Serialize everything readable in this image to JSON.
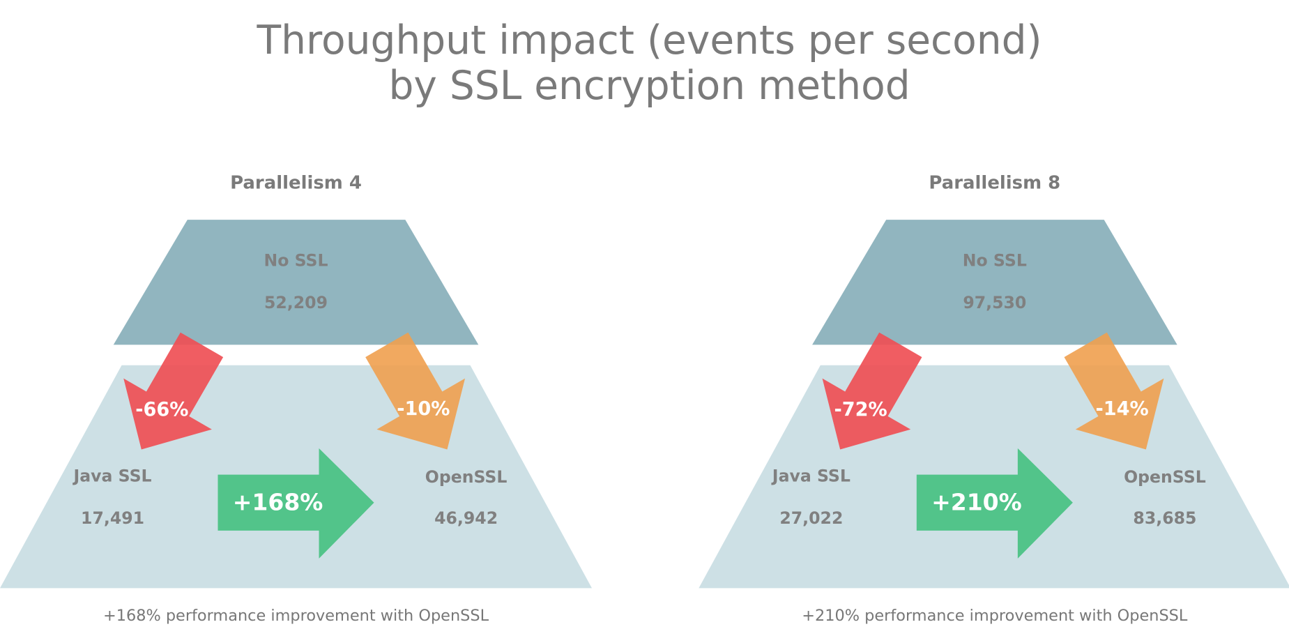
{
  "title": [
    "Throughput impact (events per second)",
    "by SSL encryption method"
  ],
  "panels": [
    {
      "heading": "Parallelism 4",
      "no_ssl": {
        "label": "No SSL",
        "value": "52,209"
      },
      "java_ssl": {
        "label": "Java SSL",
        "value": "17,491"
      },
      "openssl": {
        "label": "OpenSSL",
        "value": "46,942"
      },
      "java_change": "-66%",
      "openssl_change": "-10%",
      "improvement": "+168%",
      "caption": "+168% performance improvement with OpenSSL"
    },
    {
      "heading": "Parallelism 8",
      "no_ssl": {
        "label": "No SSL",
        "value": "97,530"
      },
      "java_ssl": {
        "label": "Java SSL",
        "value": "27,022"
      },
      "openssl": {
        "label": "OpenSSL",
        "value": "83,685"
      },
      "java_change": "-72%",
      "openssl_change": "-14%",
      "improvement": "+210%",
      "caption": "+210% performance improvement with OpenSSL"
    }
  ]
}
